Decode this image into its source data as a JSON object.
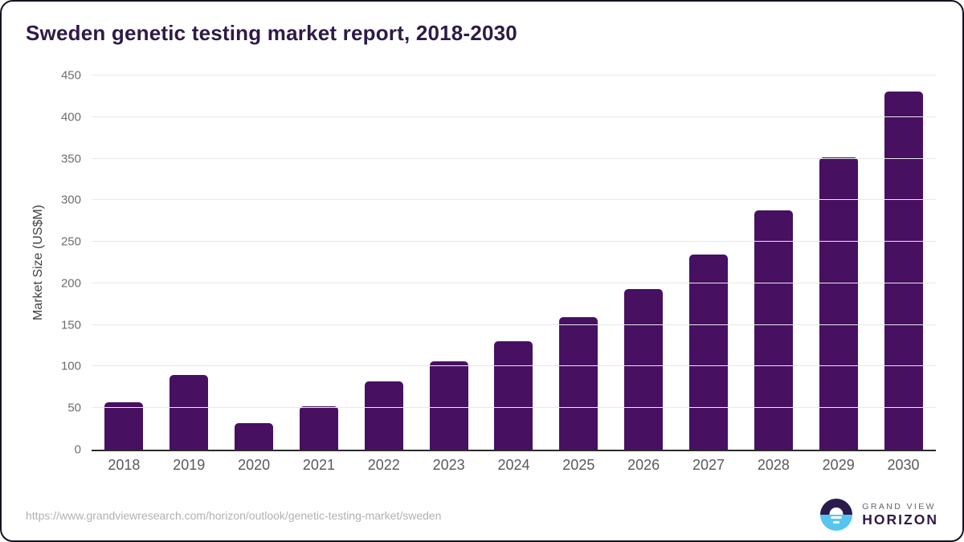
{
  "chart": {
    "title": "Sweden genetic testing market report, 2018-2030",
    "ylabel": "Market Size (US$M)"
  },
  "chart_data": {
    "type": "bar",
    "title": "Sweden genetic testing market report, 2018-2030",
    "categories": [
      "2018",
      "2019",
      "2020",
      "2021",
      "2022",
      "2023",
      "2024",
      "2025",
      "2026",
      "2027",
      "2028",
      "2029",
      "2030"
    ],
    "values": [
      57,
      90,
      32,
      52,
      82,
      106,
      130,
      159,
      193,
      235,
      288,
      352,
      431
    ],
    "xlabel": "",
    "ylabel": "Market Size (US$M)",
    "ylim": [
      0,
      450
    ],
    "ytick_step": 50,
    "grid": true,
    "legend": "none",
    "bar_color": "#471061"
  },
  "footer": {
    "source_url": "https://www.grandviewresearch.com/horizon/outlook/genetic-testing-market/sweden",
    "logo": {
      "brand_top": "GRAND VIEW",
      "brand_bottom": "HORIZON",
      "icon": "sunrise-horizon-icon"
    }
  },
  "colors": {
    "title_text": "#2e1a47",
    "bar": "#471061",
    "axis_line": "#2b2b2b",
    "gridline": "#e8e8e8",
    "y_tick_text": "#6e6e6e",
    "x_tick_text": "#595959",
    "source_url_text": "#b1b1b1",
    "logo_dark_purple": "#2b1b4d",
    "logo_light_blue": "#56c6f0"
  }
}
